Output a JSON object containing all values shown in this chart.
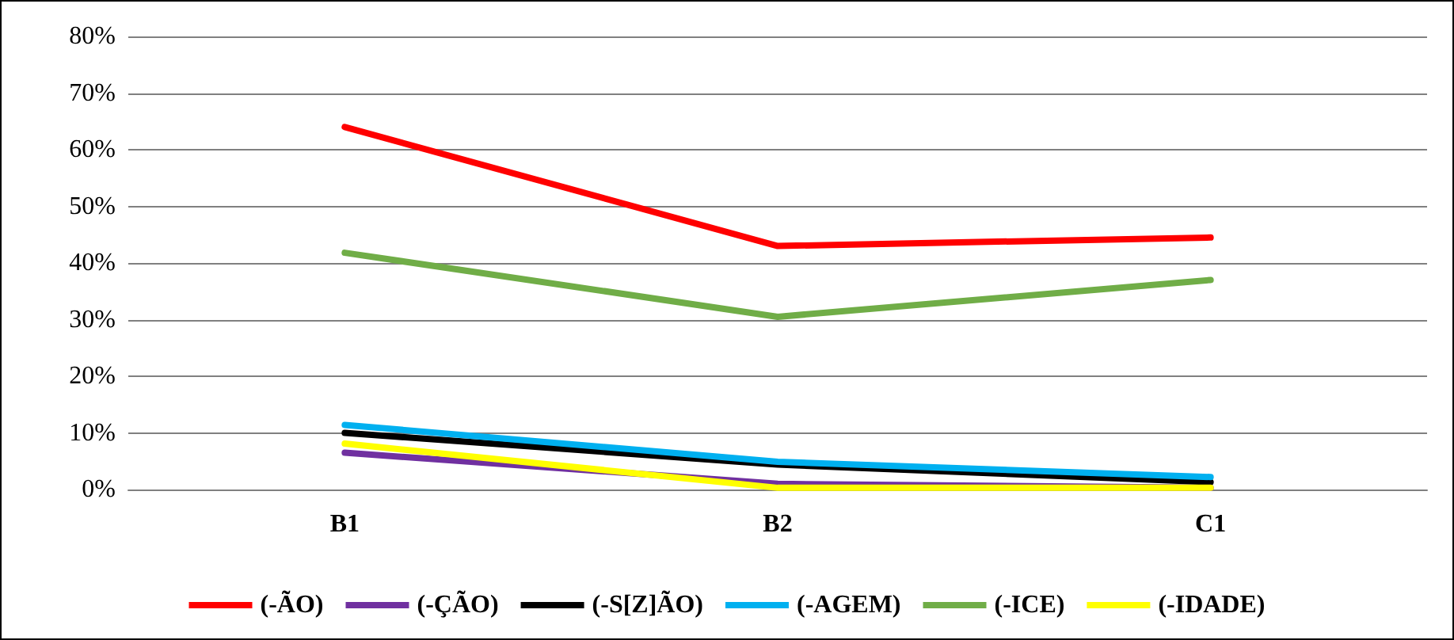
{
  "chart_data": {
    "type": "line",
    "categories": [
      "B1",
      "B2",
      "C1"
    ],
    "series": [
      {
        "name": "(-ÃO)",
        "color": "#ff0000",
        "values": [
          64,
          43,
          44.5
        ]
      },
      {
        "name": "(-ÇÃO)",
        "color": "#7030a0",
        "values": [
          6.5,
          1,
          0.3
        ]
      },
      {
        "name": "(-S[Z]ÃO)",
        "color": "#000000",
        "values": [
          10,
          4.4,
          1.3
        ]
      },
      {
        "name": "(-AGEM)",
        "color": "#00b0f0",
        "values": [
          11.4,
          4.9,
          2.2
        ]
      },
      {
        "name": "(-ICE)",
        "color": "#70ad47",
        "values": [
          41.8,
          30.5,
          37
        ]
      },
      {
        "name": "(-IDADE)",
        "color": "#ffff00",
        "values": [
          8.1,
          0.3,
          0.3
        ]
      }
    ],
    "ylim": [
      0,
      80
    ],
    "yticks": [
      {
        "value": 0,
        "label": "0%"
      },
      {
        "value": 10,
        "label": "10%"
      },
      {
        "value": 20,
        "label": "20%"
      },
      {
        "value": 30,
        "label": "30%"
      },
      {
        "value": 40,
        "label": "40%"
      },
      {
        "value": 50,
        "label": "50%"
      },
      {
        "value": 60,
        "label": "60%"
      },
      {
        "value": 70,
        "label": "70%"
      },
      {
        "value": 80,
        "label": "80%"
      }
    ],
    "grid": "y",
    "legend": "bottom",
    "marker": "none",
    "line_style": "solid"
  }
}
